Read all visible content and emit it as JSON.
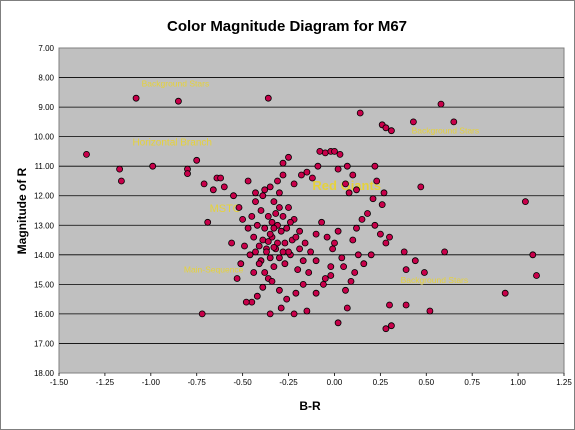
{
  "chart_data": {
    "type": "scatter",
    "title": "Color Magnitude Diagram for M67",
    "xlabel": "B-R",
    "ylabel": "Magnitude of R",
    "xlim": [
      -1.5,
      1.25
    ],
    "ylim": [
      7.0,
      18.0
    ],
    "y_inverted": true,
    "x_ticks": [
      "-1.50",
      "-1.25",
      "-1.00",
      "-0.75",
      "-0.50",
      "-0.25",
      "0.00",
      "0.25",
      "0.50",
      "0.75",
      "1.00",
      "1.25"
    ],
    "y_ticks": [
      "7.00",
      "8.00",
      "9.00",
      "10.00",
      "11.00",
      "12.00",
      "13.00",
      "14.00",
      "15.00",
      "16.00",
      "17.00",
      "18.00"
    ],
    "grid": "horizontal",
    "plot_background": "#c0c0c0",
    "marker_color": "#c8004a",
    "annotation_color": "#e6d23a",
    "annotations": [
      {
        "text": "Background Stars",
        "x": -1.05,
        "y": 8.3
      },
      {
        "text": "Horizontal Branch",
        "x": -1.1,
        "y": 10.3
      },
      {
        "text": "MSTO",
        "x": -0.68,
        "y": 12.55
      },
      {
        "text": "Red Giants",
        "x": -0.12,
        "y": 11.8
      },
      {
        "text": "Main-Sequence",
        "x": -0.82,
        "y": 14.6
      },
      {
        "text": "Background Stars",
        "x": 0.42,
        "y": 9.9
      },
      {
        "text": "Background Stars",
        "x": 0.36,
        "y": 14.95
      }
    ],
    "series": [
      {
        "points": [
          [
            -1.35,
            10.6
          ],
          [
            -1.17,
            11.1
          ],
          [
            -1.16,
            11.5
          ],
          [
            -1.08,
            8.7
          ],
          [
            -0.99,
            11.0
          ],
          [
            -0.85,
            8.8
          ],
          [
            -0.8,
            11.1
          ],
          [
            -0.8,
            11.25
          ],
          [
            -0.75,
            10.8
          ],
          [
            -0.71,
            11.6
          ],
          [
            -0.69,
            12.9
          ],
          [
            -0.72,
            16.0
          ],
          [
            -0.66,
            11.8
          ],
          [
            -0.64,
            11.4
          ],
          [
            -0.62,
            11.4
          ],
          [
            -0.6,
            11.7
          ],
          [
            -0.55,
            12.0
          ],
          [
            -0.52,
            12.4
          ],
          [
            -0.5,
            12.8
          ],
          [
            -0.47,
            11.5
          ],
          [
            -0.43,
            11.9
          ],
          [
            -0.38,
            11.8
          ],
          [
            -0.36,
            8.7
          ],
          [
            -0.33,
            12.2
          ],
          [
            -0.3,
            11.9
          ],
          [
            -0.28,
            11.3
          ],
          [
            -0.25,
            10.7
          ],
          [
            -0.28,
            10.9
          ],
          [
            -0.22,
            11.6
          ],
          [
            -0.18,
            11.3
          ],
          [
            -0.15,
            11.2
          ],
          [
            -0.12,
            11.4
          ],
          [
            -0.09,
            11.0
          ],
          [
            -0.05,
            10.55
          ],
          [
            -0.02,
            10.5
          ],
          [
            0.0,
            10.5
          ],
          [
            -0.08,
            10.5
          ],
          [
            0.03,
            10.6
          ],
          [
            0.07,
            11.0
          ],
          [
            0.1,
            11.3
          ],
          [
            0.02,
            11.1
          ],
          [
            0.06,
            11.6
          ],
          [
            0.08,
            11.9
          ],
          [
            0.12,
            11.8
          ],
          [
            0.14,
            9.2
          ],
          [
            0.22,
            11.0
          ],
          [
            0.26,
            9.6
          ],
          [
            0.28,
            9.7
          ],
          [
            0.31,
            9.8
          ],
          [
            0.23,
            11.5
          ],
          [
            0.27,
            11.9
          ],
          [
            0.21,
            12.1
          ],
          [
            0.26,
            12.3
          ],
          [
            0.18,
            12.6
          ],
          [
            0.15,
            12.8
          ],
          [
            0.12,
            13.1
          ],
          [
            0.22,
            13.0
          ],
          [
            0.25,
            13.3
          ],
          [
            0.3,
            13.4
          ],
          [
            0.28,
            13.6
          ],
          [
            0.2,
            14.0
          ],
          [
            0.16,
            14.3
          ],
          [
            0.11,
            14.6
          ],
          [
            0.09,
            14.9
          ],
          [
            0.06,
            15.2
          ],
          [
            0.07,
            15.8
          ],
          [
            0.02,
            16.3
          ],
          [
            0.28,
            16.5
          ],
          [
            0.31,
            16.4
          ],
          [
            0.3,
            15.7
          ],
          [
            0.39,
            15.7
          ],
          [
            0.38,
            13.9
          ],
          [
            0.44,
            14.2
          ],
          [
            0.39,
            14.5
          ],
          [
            0.49,
            14.6
          ],
          [
            0.52,
            15.9
          ],
          [
            0.58,
            8.9
          ],
          [
            0.65,
            9.5
          ],
          [
            0.43,
            9.5
          ],
          [
            0.47,
            11.7
          ],
          [
            0.6,
            13.9
          ],
          [
            0.93,
            15.3
          ],
          [
            1.04,
            12.2
          ],
          [
            1.08,
            14.0
          ],
          [
            1.1,
            14.7
          ],
          [
            0.13,
            14.0
          ],
          [
            0.1,
            13.5
          ],
          [
            0.04,
            14.1
          ],
          [
            -0.02,
            14.4
          ],
          [
            -0.05,
            14.8
          ],
          [
            -0.1,
            14.2
          ],
          [
            -0.14,
            14.6
          ],
          [
            -0.17,
            15.0
          ],
          [
            -0.21,
            15.3
          ],
          [
            -0.24,
            14.0
          ],
          [
            -0.27,
            13.6
          ],
          [
            -0.3,
            14.1
          ],
          [
            -0.33,
            14.4
          ],
          [
            -0.36,
            14.8
          ],
          [
            -0.39,
            15.1
          ],
          [
            -0.42,
            15.4
          ],
          [
            -0.45,
            15.6
          ],
          [
            -0.48,
            15.6
          ],
          [
            -0.44,
            14.6
          ],
          [
            -0.4,
            14.2
          ],
          [
            -0.37,
            13.8
          ],
          [
            -0.34,
            13.4
          ],
          [
            -0.31,
            13.0
          ],
          [
            -0.28,
            12.7
          ],
          [
            -0.25,
            12.4
          ],
          [
            -0.22,
            12.8
          ],
          [
            -0.19,
            13.2
          ],
          [
            -0.16,
            13.6
          ],
          [
            -0.13,
            13.9
          ],
          [
            -0.1,
            13.3
          ],
          [
            -0.07,
            12.9
          ],
          [
            -0.04,
            13.4
          ],
          [
            -0.01,
            13.8
          ],
          [
            0.02,
            13.2
          ],
          [
            -0.38,
            13.1
          ],
          [
            -0.35,
            13.3
          ],
          [
            -0.33,
            13.1
          ],
          [
            -0.31,
            13.6
          ],
          [
            -0.29,
            13.2
          ],
          [
            -0.36,
            12.7
          ],
          [
            -0.34,
            12.9
          ],
          [
            -0.32,
            12.6
          ],
          [
            -0.3,
            12.4
          ],
          [
            -0.4,
            12.5
          ],
          [
            -0.42,
            13.0
          ],
          [
            -0.44,
            13.4
          ],
          [
            -0.39,
            13.5
          ],
          [
            -0.37,
            13.9
          ],
          [
            -0.35,
            14.1
          ],
          [
            -0.32,
            13.8
          ],
          [
            -0.27,
            14.3
          ],
          [
            -0.25,
            13.9
          ],
          [
            -0.23,
            13.5
          ],
          [
            -0.26,
            13.1
          ],
          [
            -0.24,
            12.9
          ],
          [
            -0.21,
            13.4
          ],
          [
            -0.19,
            13.8
          ],
          [
            -0.17,
            14.2
          ],
          [
            -0.2,
            14.5
          ],
          [
            -0.41,
            14.3
          ],
          [
            -0.46,
            14.0
          ],
          [
            -0.49,
            13.7
          ],
          [
            -0.51,
            14.3
          ],
          [
            -0.53,
            14.8
          ],
          [
            -0.56,
            13.6
          ],
          [
            -0.38,
            14.6
          ],
          [
            -0.34,
            14.9
          ],
          [
            -0.3,
            15.2
          ],
          [
            -0.26,
            15.5
          ],
          [
            -0.35,
            16.0
          ],
          [
            -0.29,
            15.8
          ],
          [
            -0.22,
            16.0
          ],
          [
            -0.15,
            15.9
          ],
          [
            -0.1,
            15.3
          ],
          [
            -0.06,
            15.0
          ],
          [
            -0.02,
            14.7
          ],
          [
            0.05,
            14.4
          ],
          [
            0.0,
            13.6
          ],
          [
            -0.43,
            12.2
          ],
          [
            -0.39,
            12.0
          ],
          [
            -0.35,
            11.7
          ],
          [
            -0.31,
            11.5
          ],
          [
            -0.45,
            12.7
          ],
          [
            -0.47,
            13.1
          ],
          [
            -0.36,
            13.55
          ],
          [
            -0.33,
            13.75
          ],
          [
            -0.28,
            13.9
          ],
          [
            -0.41,
            13.7
          ],
          [
            -0.43,
            13.9
          ]
        ]
      }
    ]
  }
}
